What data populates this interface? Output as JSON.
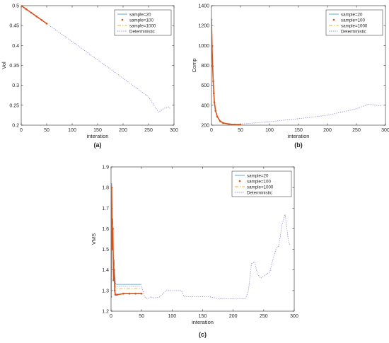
{
  "chart_data": [
    {
      "type": "line",
      "panel_label": "(a)",
      "xlabel": "interation",
      "ylabel": "Vol",
      "xlim": [
        0,
        300
      ],
      "ylim": [
        0.2,
        0.5
      ],
      "xticks": [
        0,
        50,
        100,
        150,
        200,
        250,
        300
      ],
      "yticks": [
        0.2,
        0.25,
        0.3,
        0.35,
        0.4,
        0.45,
        0.5
      ],
      "legend_position": "top-right",
      "series": [
        {
          "name": "sample=20",
          "color": "#4a9ecb",
          "style": "solid",
          "x": [
            0,
            50
          ],
          "y": [
            0.5,
            0.455
          ]
        },
        {
          "name": "sample=100",
          "color": "#d95319",
          "style": "dots",
          "x": [
            0,
            10,
            20,
            30,
            40,
            50
          ],
          "y": [
            0.5,
            0.491,
            0.482,
            0.473,
            0.464,
            0.455
          ]
        },
        {
          "name": "sample=1000",
          "color": "#edb120",
          "style": "dashdot",
          "x": [
            0,
            50
          ],
          "y": [
            0.5,
            0.455
          ]
        },
        {
          "name": "Deterministic",
          "color": "#7e7ecf",
          "style": "dotted",
          "x": [
            0,
            50,
            100,
            150,
            200,
            250,
            270,
            280,
            290,
            293
          ],
          "y": [
            0.5,
            0.455,
            0.41,
            0.364,
            0.318,
            0.271,
            0.232,
            0.242,
            0.246,
            0.24
          ]
        }
      ]
    },
    {
      "type": "line",
      "panel_label": "(b)",
      "xlabel": "interation",
      "ylabel": "Comp",
      "xlim": [
        0,
        300
      ],
      "ylim": [
        200,
        1400
      ],
      "xticks": [
        0,
        50,
        100,
        150,
        200,
        250,
        300
      ],
      "yticks": [
        200,
        400,
        600,
        800,
        1000,
        1200,
        1400
      ],
      "legend_position": "top-right",
      "series": [
        {
          "name": "sample=20",
          "color": "#4a9ecb",
          "style": "solid",
          "x": [
            0,
            1,
            2,
            3,
            4,
            5,
            7,
            10,
            15,
            20,
            30,
            40,
            50
          ],
          "y": [
            1270,
            1000,
            800,
            650,
            530,
            440,
            350,
            290,
            245,
            225,
            213,
            210,
            210
          ]
        },
        {
          "name": "sample=100",
          "color": "#d95319",
          "style": "dots",
          "x": [
            0,
            1,
            2,
            3,
            4,
            5,
            7,
            10,
            15,
            20,
            30,
            40,
            50
          ],
          "y": [
            1260,
            990,
            790,
            640,
            520,
            430,
            345,
            285,
            240,
            222,
            210,
            207,
            206
          ]
        },
        {
          "name": "sample=1000",
          "color": "#edb120",
          "style": "dashdot",
          "x": [
            0,
            1,
            2,
            3,
            4,
            5,
            7,
            10,
            15,
            20,
            30,
            40,
            50
          ],
          "y": [
            1265,
            995,
            795,
            645,
            525,
            435,
            348,
            288,
            243,
            224,
            212,
            209,
            208
          ]
        },
        {
          "name": "Deterministic",
          "color": "#7e7ecf",
          "style": "dotted",
          "x": [
            0,
            1,
            2,
            3,
            4,
            5,
            7,
            10,
            15,
            20,
            30,
            40,
            50,
            100,
            150,
            200,
            250,
            270,
            280,
            290,
            293
          ],
          "y": [
            1280,
            1000,
            800,
            650,
            530,
            440,
            350,
            290,
            245,
            225,
            213,
            210,
            210,
            235,
            265,
            300,
            365,
            410,
            405,
            395,
            398
          ]
        }
      ]
    },
    {
      "type": "line",
      "panel_label": "(c)",
      "xlabel": "interation",
      "ylabel": "VMS",
      "xlim": [
        0,
        300
      ],
      "ylim": [
        1.2,
        1.9
      ],
      "xticks": [
        0,
        50,
        100,
        150,
        200,
        250,
        300
      ],
      "yticks": [
        1.2,
        1.3,
        1.4,
        1.5,
        1.6,
        1.7,
        1.8,
        1.9
      ],
      "legend_position": "top-right",
      "series": [
        {
          "name": "sample=20",
          "color": "#4a9ecb",
          "style": "solid",
          "x": [
            0,
            1,
            2,
            3,
            4,
            5,
            6,
            7,
            8,
            10,
            20,
            50
          ],
          "y": [
            1.3,
            1.82,
            1.55,
            1.65,
            1.4,
            1.45,
            1.38,
            1.34,
            1.33,
            1.33,
            1.33,
            1.33
          ]
        },
        {
          "name": "sample=100",
          "color": "#d95319",
          "style": "dots",
          "x": [
            0,
            1,
            2,
            3,
            4,
            5,
            6,
            7,
            8,
            10,
            20,
            30,
            40,
            50
          ],
          "y": [
            1.27,
            1.8,
            1.5,
            1.6,
            1.35,
            1.4,
            1.3,
            1.28,
            1.28,
            1.28,
            1.285,
            1.285,
            1.285,
            1.285
          ]
        },
        {
          "name": "sample=1000",
          "color": "#edb120",
          "style": "dashdot",
          "x": [
            0,
            1,
            2,
            3,
            4,
            5,
            6,
            7,
            8,
            10,
            20,
            50
          ],
          "y": [
            1.29,
            1.79,
            1.52,
            1.62,
            1.37,
            1.42,
            1.33,
            1.315,
            1.31,
            1.31,
            1.31,
            1.31
          ]
        },
        {
          "name": "Deterministic",
          "color": "#7e7ecf",
          "style": "dotted",
          "x": [
            0,
            1,
            2,
            3,
            4,
            5,
            6,
            7,
            8,
            10,
            20,
            50,
            55,
            60,
            65,
            70,
            75,
            80,
            90,
            100,
            115,
            120,
            160,
            170,
            175,
            200,
            220,
            225,
            230,
            235,
            240,
            245,
            250,
            260,
            265,
            270,
            275,
            280,
            285,
            288,
            291,
            294
          ],
          "y": [
            1.3,
            1.81,
            1.53,
            1.63,
            1.38,
            1.44,
            1.34,
            1.325,
            1.32,
            1.32,
            1.32,
            1.32,
            1.27,
            1.26,
            1.27,
            1.265,
            1.265,
            1.27,
            1.3,
            1.3,
            1.3,
            1.27,
            1.27,
            1.265,
            1.26,
            1.26,
            1.26,
            1.3,
            1.43,
            1.44,
            1.38,
            1.36,
            1.37,
            1.39,
            1.45,
            1.5,
            1.52,
            1.62,
            1.67,
            1.6,
            1.53,
            1.52
          ]
        }
      ]
    }
  ]
}
